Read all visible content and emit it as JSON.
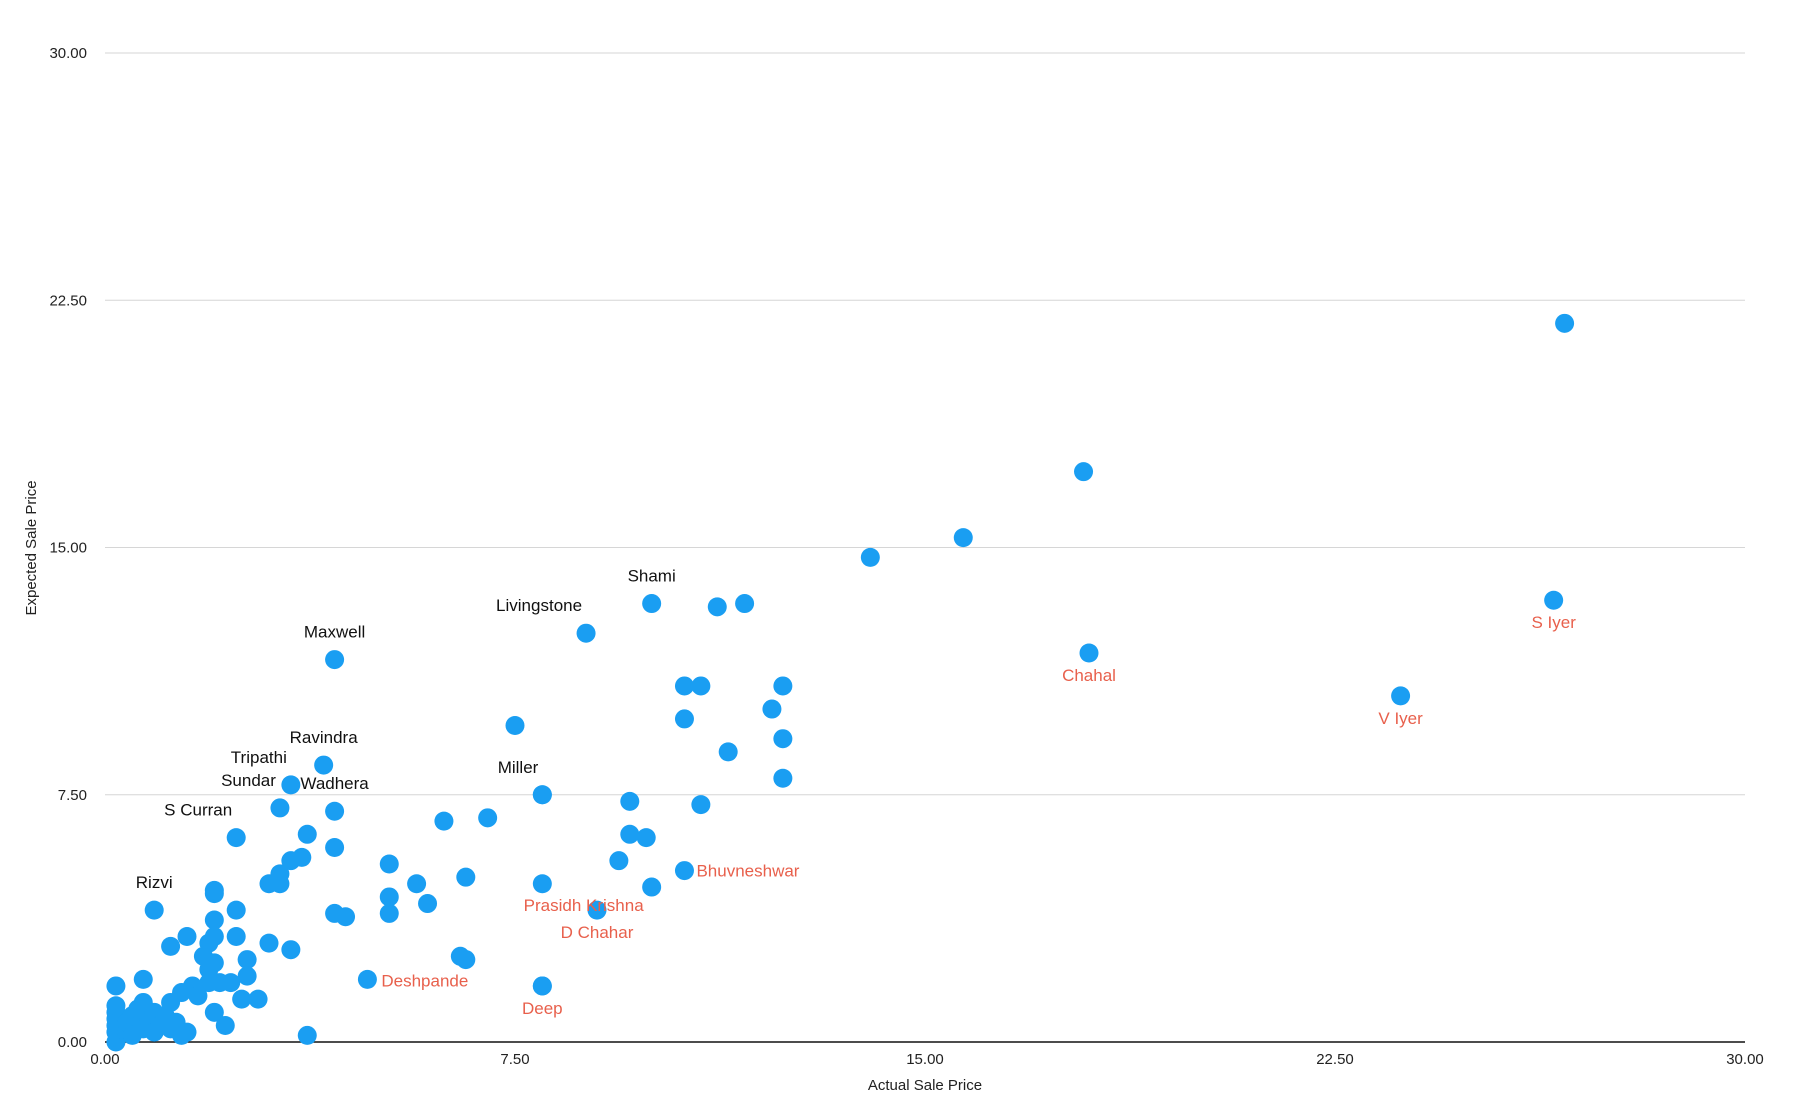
{
  "chart_data": {
    "type": "scatter",
    "xlabel": "Actual Sale Price",
    "ylabel": "Expected Sale Price",
    "xlim": [
      0,
      30
    ],
    "ylim": [
      0,
      30
    ],
    "xticks": [
      "0.00",
      "7.50",
      "15.00",
      "22.50",
      "30.00"
    ],
    "yticks": [
      "0.00",
      "7.50",
      "15.00",
      "22.50",
      "30.00"
    ],
    "grid": "horizontal",
    "marker_color": "#1a9ef2",
    "label_colors": {
      "over": "#111111",
      "under": "#e8604c"
    },
    "points": [
      [
        0.2,
        0.0
      ],
      [
        0.2,
        0.3
      ],
      [
        0.2,
        0.5
      ],
      [
        0.2,
        0.7
      ],
      [
        0.2,
        0.9
      ],
      [
        0.2,
        1.1
      ],
      [
        0.2,
        1.7
      ],
      [
        0.4,
        0.3
      ],
      [
        0.4,
        0.6
      ],
      [
        0.5,
        0.2
      ],
      [
        0.5,
        0.8
      ],
      [
        0.6,
        1.0
      ],
      [
        0.7,
        0.4
      ],
      [
        0.7,
        1.2
      ],
      [
        0.7,
        1.9
      ],
      [
        0.8,
        0.6
      ],
      [
        0.9,
        0.3
      ],
      [
        0.9,
        0.9
      ],
      [
        1.0,
        0.5
      ],
      [
        1.1,
        0.8
      ],
      [
        1.2,
        1.2
      ],
      [
        1.2,
        0.4
      ],
      [
        1.3,
        0.6
      ],
      [
        1.4,
        0.2
      ],
      [
        1.5,
        0.3
      ],
      [
        1.4,
        1.5
      ],
      [
        1.6,
        1.7
      ],
      [
        1.7,
        1.4
      ],
      [
        1.9,
        1.8
      ],
      [
        1.9,
        2.2
      ],
      [
        1.8,
        2.6
      ],
      [
        1.9,
        3.0
      ],
      [
        2.0,
        2.4
      ],
      [
        2.0,
        3.2
      ],
      [
        2.0,
        0.9
      ],
      [
        2.1,
        1.8
      ],
      [
        2.2,
        0.5
      ],
      [
        2.3,
        1.8
      ],
      [
        2.4,
        3.2
      ],
      [
        2.4,
        4.0
      ],
      [
        2.5,
        1.3
      ],
      [
        2.6,
        2.5
      ],
      [
        2.6,
        2.0
      ],
      [
        2.8,
        1.3
      ],
      [
        1.2,
        2.9
      ],
      [
        1.5,
        3.2
      ],
      [
        2.0,
        3.7
      ],
      [
        2.0,
        4.5
      ],
      [
        2.0,
        4.6
      ],
      [
        3.0,
        3.0
      ],
      [
        3.0,
        4.8
      ],
      [
        3.2,
        4.8
      ],
      [
        3.2,
        5.1
      ],
      [
        3.4,
        5.5
      ],
      [
        3.4,
        2.8
      ],
      [
        3.6,
        5.6
      ],
      [
        3.7,
        6.3
      ],
      [
        4.2,
        5.9
      ],
      [
        4.2,
        3.9
      ],
      [
        4.4,
        3.8
      ],
      [
        3.7,
        0.2
      ],
      [
        4.8,
        1.9
      ],
      [
        5.2,
        5.4
      ],
      [
        5.2,
        4.4
      ],
      [
        5.2,
        3.9
      ],
      [
        5.7,
        4.8
      ],
      [
        5.9,
        4.2
      ],
      [
        6.6,
        5.0
      ],
      [
        6.6,
        2.5
      ],
      [
        7.0,
        6.8
      ],
      [
        6.2,
        6.7
      ],
      [
        8.0,
        7.5
      ],
      [
        8.0,
        4.8
      ],
      [
        8.0,
        1.7
      ],
      [
        7.5,
        9.6
      ],
      [
        9.4,
        5.5
      ],
      [
        9.6,
        7.3
      ],
      [
        9.6,
        6.3
      ],
      [
        9.9,
        6.2
      ],
      [
        10.6,
        9.8
      ],
      [
        10.6,
        10.8
      ],
      [
        10.9,
        10.8
      ],
      [
        10.9,
        7.2
      ],
      [
        11.4,
        8.8
      ],
      [
        12.2,
        10.1
      ],
      [
        12.4,
        10.8
      ],
      [
        12.4,
        9.2
      ],
      [
        12.4,
        8.0
      ],
      [
        11.2,
        13.2
      ],
      [
        11.7,
        13.3
      ],
      [
        14.0,
        14.7
      ],
      [
        15.7,
        15.3
      ],
      [
        17.9,
        17.3
      ],
      [
        26.7,
        21.8
      ]
    ],
    "labeled_points": [
      {
        "name": "Maxwell",
        "x": 4.2,
        "y": 11.6,
        "group": "over",
        "pos": "above"
      },
      {
        "name": "Livingstone",
        "x": 8.8,
        "y": 12.4,
        "group": "over",
        "pos": "above-left"
      },
      {
        "name": "Shami",
        "x": 10.0,
        "y": 13.3,
        "group": "over",
        "pos": "above"
      },
      {
        "name": "Ravindra",
        "x": 4.0,
        "y": 8.4,
        "group": "over",
        "pos": "above"
      },
      {
        "name": "Tripathi",
        "x": 3.4,
        "y": 7.8,
        "group": "over",
        "pos": "above-left"
      },
      {
        "name": "Wadhera",
        "x": 4.2,
        "y": 7.0,
        "group": "over",
        "pos": "above"
      },
      {
        "name": "Sundar",
        "x": 3.2,
        "y": 7.1,
        "group": "over",
        "pos": "above-left"
      },
      {
        "name": "S Curran",
        "x": 2.4,
        "y": 6.2,
        "group": "over",
        "pos": "above-left"
      },
      {
        "name": "Miller",
        "x": 8.0,
        "y": 7.5,
        "group": "over",
        "pos": "above-left"
      },
      {
        "name": "Rizvi",
        "x": 0.9,
        "y": 4.0,
        "group": "over",
        "pos": "above"
      },
      {
        "name": "S Iyer",
        "x": 26.5,
        "y": 13.4,
        "group": "under",
        "pos": "below"
      },
      {
        "name": "Chahal",
        "x": 18.0,
        "y": 11.8,
        "group": "under",
        "pos": "below"
      },
      {
        "name": "V Iyer",
        "x": 23.7,
        "y": 10.5,
        "group": "under",
        "pos": "below"
      },
      {
        "name": "Bhuvneshwar",
        "x": 10.6,
        "y": 5.2,
        "group": "under",
        "pos": "right"
      },
      {
        "name": "Prasidh Krishna",
        "x": 10.0,
        "y": 4.7,
        "group": "under",
        "pos": "left"
      },
      {
        "name": "D Chahar",
        "x": 9.0,
        "y": 4.0,
        "group": "under",
        "pos": "below"
      },
      {
        "name": "Deshpande",
        "x": 6.5,
        "y": 2.6,
        "group": "under",
        "pos": "below-left"
      },
      {
        "name": "Deep",
        "x": 8.0,
        "y": 1.7,
        "group": "under",
        "pos": "below"
      }
    ]
  }
}
